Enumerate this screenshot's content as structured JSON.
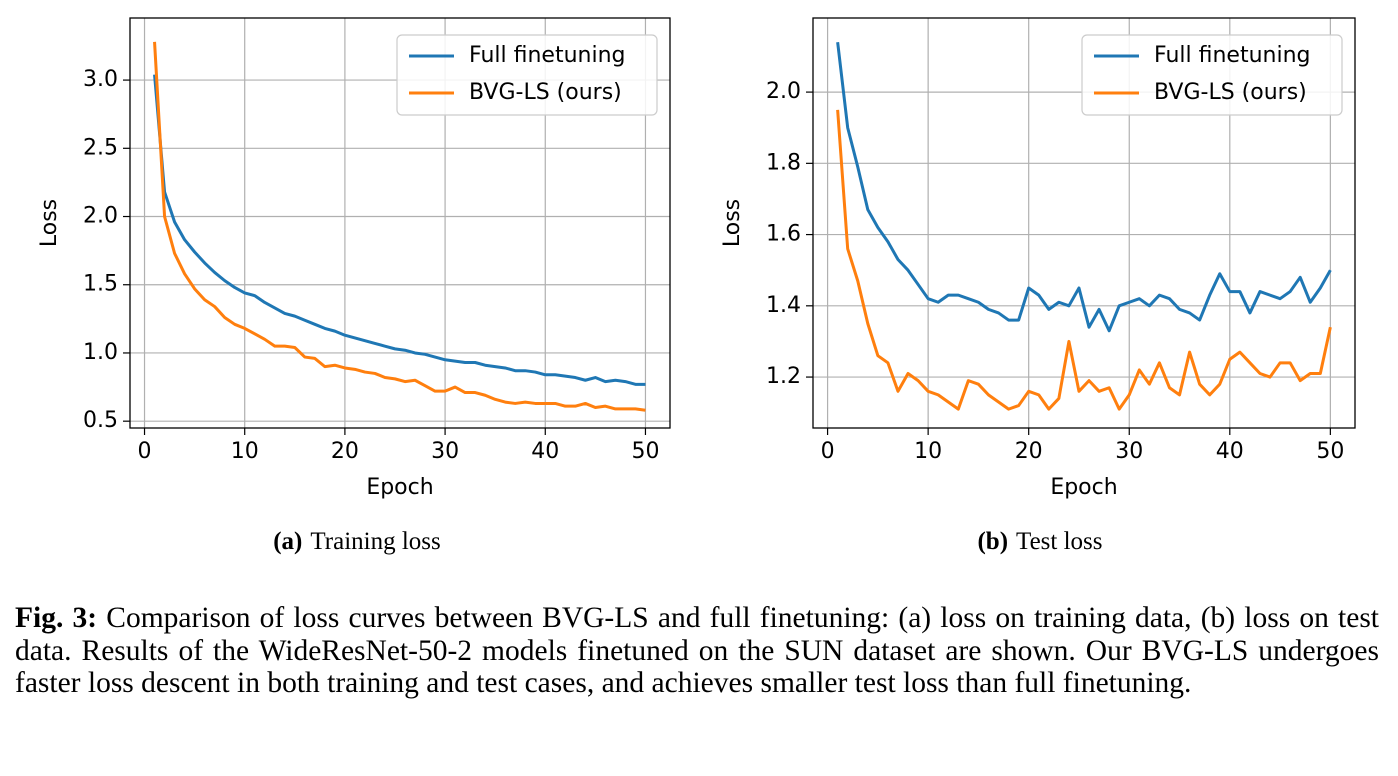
{
  "chart_data": [
    {
      "type": "line",
      "xlabel": "Epoch",
      "ylabel": "Loss",
      "x": [
        1,
        2,
        3,
        4,
        5,
        6,
        7,
        8,
        9,
        10,
        11,
        12,
        13,
        14,
        15,
        16,
        17,
        18,
        19,
        20,
        21,
        22,
        23,
        24,
        25,
        26,
        27,
        28,
        29,
        30,
        31,
        32,
        33,
        34,
        35,
        36,
        37,
        38,
        39,
        40,
        41,
        42,
        43,
        44,
        45,
        46,
        47,
        48,
        49,
        50
      ],
      "series": [
        {
          "name": "Full finetuning",
          "color": "#1f77b4",
          "values": [
            3.04,
            2.18,
            1.96,
            1.83,
            1.74,
            1.66,
            1.59,
            1.53,
            1.48,
            1.44,
            1.42,
            1.37,
            1.33,
            1.29,
            1.27,
            1.24,
            1.21,
            1.18,
            1.16,
            1.13,
            1.11,
            1.09,
            1.07,
            1.05,
            1.03,
            1.02,
            1.0,
            0.99,
            0.97,
            0.95,
            0.94,
            0.93,
            0.93,
            0.91,
            0.9,
            0.89,
            0.87,
            0.87,
            0.86,
            0.84,
            0.84,
            0.83,
            0.82,
            0.8,
            0.82,
            0.79,
            0.8,
            0.79,
            0.77,
            0.77
          ]
        },
        {
          "name": "BVG-LS (ours)",
          "color": "#ff7f0e",
          "values": [
            3.28,
            2.0,
            1.73,
            1.58,
            1.47,
            1.39,
            1.34,
            1.26,
            1.21,
            1.18,
            1.14,
            1.1,
            1.05,
            1.05,
            1.04,
            0.97,
            0.96,
            0.9,
            0.91,
            0.89,
            0.88,
            0.86,
            0.85,
            0.82,
            0.81,
            0.79,
            0.8,
            0.76,
            0.72,
            0.72,
            0.75,
            0.71,
            0.71,
            0.69,
            0.66,
            0.64,
            0.63,
            0.64,
            0.63,
            0.63,
            0.63,
            0.61,
            0.61,
            0.63,
            0.6,
            0.61,
            0.59,
            0.59,
            0.59,
            0.58
          ]
        }
      ],
      "xlim": [
        -1.45,
        52.45
      ],
      "xticks": [
        0,
        10,
        20,
        30,
        40,
        50
      ],
      "ylim": [
        0.45,
        3.455
      ],
      "yticks": [
        0.5,
        {
          "value": 1,
          "label": "1.0"
        },
        1.5,
        {
          "value": 2,
          "label": "2.0"
        },
        2.5,
        {
          "value": 3,
          "label": "3.0"
        }
      ],
      "grid": true,
      "legend": "upper right",
      "subcaption": {
        "label": "(a)",
        "text": "Training loss"
      }
    },
    {
      "type": "line",
      "xlabel": "Epoch",
      "ylabel": "Loss",
      "x": [
        1,
        2,
        3,
        4,
        5,
        6,
        7,
        8,
        9,
        10,
        11,
        12,
        13,
        14,
        15,
        16,
        17,
        18,
        19,
        20,
        21,
        22,
        23,
        24,
        25,
        26,
        27,
        28,
        29,
        30,
        31,
        32,
        33,
        34,
        35,
        36,
        37,
        38,
        39,
        40,
        41,
        42,
        43,
        44,
        45,
        46,
        47,
        48,
        49,
        50
      ],
      "series": [
        {
          "name": "Full finetuning",
          "color": "#1f77b4",
          "values": [
            2.14,
            1.9,
            1.79,
            1.67,
            1.62,
            1.58,
            1.53,
            1.5,
            1.46,
            1.42,
            1.41,
            1.43,
            1.43,
            1.42,
            1.41,
            1.39,
            1.38,
            1.36,
            1.36,
            1.45,
            1.43,
            1.39,
            1.41,
            1.4,
            1.45,
            1.34,
            1.39,
            1.33,
            1.4,
            1.41,
            1.42,
            1.4,
            1.43,
            1.42,
            1.39,
            1.38,
            1.36,
            1.43,
            1.49,
            1.44,
            1.44,
            1.38,
            1.44,
            1.43,
            1.42,
            1.44,
            1.48,
            1.41,
            1.45,
            1.5
          ]
        },
        {
          "name": "BVG-LS (ours)",
          "color": "#ff7f0e",
          "values": [
            1.95,
            1.56,
            1.47,
            1.35,
            1.26,
            1.24,
            1.16,
            1.21,
            1.19,
            1.16,
            1.15,
            1.13,
            1.11,
            1.19,
            1.18,
            1.15,
            1.13,
            1.11,
            1.12,
            1.16,
            1.15,
            1.11,
            1.14,
            1.3,
            1.16,
            1.19,
            1.16,
            1.17,
            1.11,
            1.15,
            1.22,
            1.18,
            1.24,
            1.17,
            1.15,
            1.27,
            1.18,
            1.15,
            1.18,
            1.25,
            1.27,
            1.24,
            1.21,
            1.2,
            1.24,
            1.24,
            1.19,
            1.21,
            1.21,
            1.34
          ]
        }
      ],
      "xlim": [
        -1.45,
        52.45
      ],
      "xticks": [
        0,
        10,
        20,
        30,
        40,
        50
      ],
      "ylim": [
        1.057,
        2.208
      ],
      "yticks": [
        1.2,
        1.4,
        1.6,
        1.8,
        {
          "value": 2,
          "label": "2.0"
        }
      ],
      "grid": true,
      "legend": "upper right",
      "subcaption": {
        "label": "(b)",
        "text": "Test loss"
      }
    }
  ],
  "caption": {
    "label": "Fig. 3:",
    "text": "Comparison of loss curves between BVG-LS and full finetuning: (a) loss on training data, (b) loss on test data. Results of the WideResNet-50-2 models finetuned on the SUN dataset are shown. Our BVG-LS undergoes faster loss descent in both training and test cases, and achieves smaller test loss than full finetuning."
  }
}
